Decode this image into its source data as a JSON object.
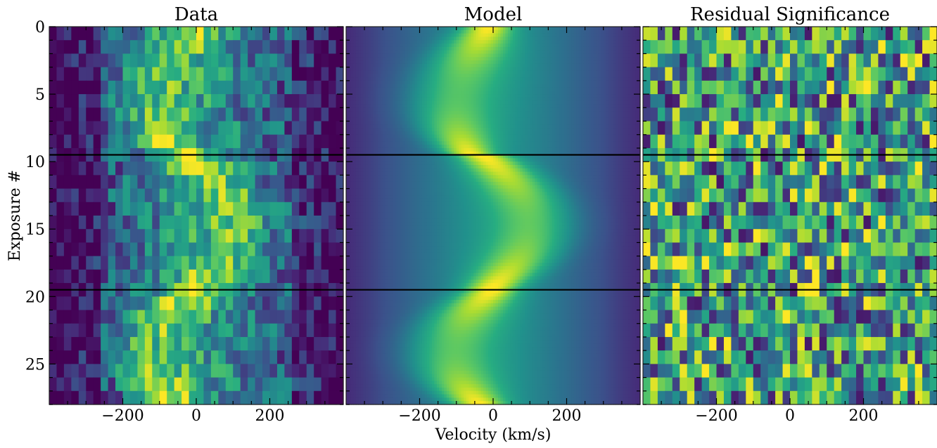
{
  "chart_data": {
    "type": "heatmap",
    "colormap": "viridis",
    "xlabel": "Velocity (km/s)",
    "ylabel": "Exposure #",
    "xlim": [
      -400,
      400
    ],
    "ylim": [
      28,
      0
    ],
    "xticks": [
      -200,
      0,
      200
    ],
    "xtick_labels": [
      "−200",
      "0",
      "200"
    ],
    "yticks": [
      0,
      5,
      10,
      15,
      20,
      25
    ],
    "ytick_labels": [
      "0",
      "5",
      "10",
      "15",
      "20",
      "25"
    ],
    "n_exposures": 28,
    "n_velocity_bins": 40,
    "transit_boundaries": [
      9.5,
      19.5
    ],
    "panels": [
      {
        "title": "Data",
        "kind": "data"
      },
      {
        "title": "Model",
        "kind": "model"
      },
      {
        "title": "Residual Significance",
        "kind": "residual"
      }
    ],
    "grid": false
  }
}
